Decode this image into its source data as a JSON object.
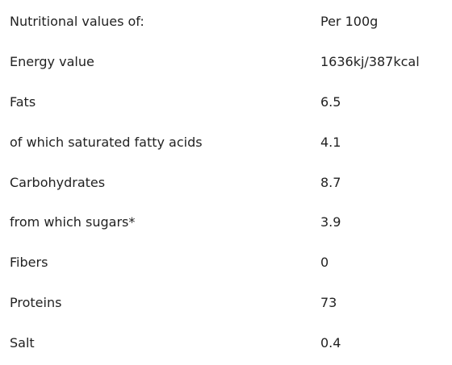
{
  "table": {
    "header": [
      "Nutritional values of:",
      "Per 100g"
    ],
    "rows": [
      [
        "Energy value",
        "1636kj/387kcal"
      ],
      [
        "Fats",
        "6.5"
      ],
      [
        "of which saturated fatty acids",
        "4.1"
      ],
      [
        "Carbohydrates",
        "8.7"
      ],
      [
        "from which sugars*",
        "3.9"
      ],
      [
        "Fibers",
        "0"
      ],
      [
        "Proteins",
        "73"
      ],
      [
        "Salt",
        "0.4"
      ]
    ]
  }
}
